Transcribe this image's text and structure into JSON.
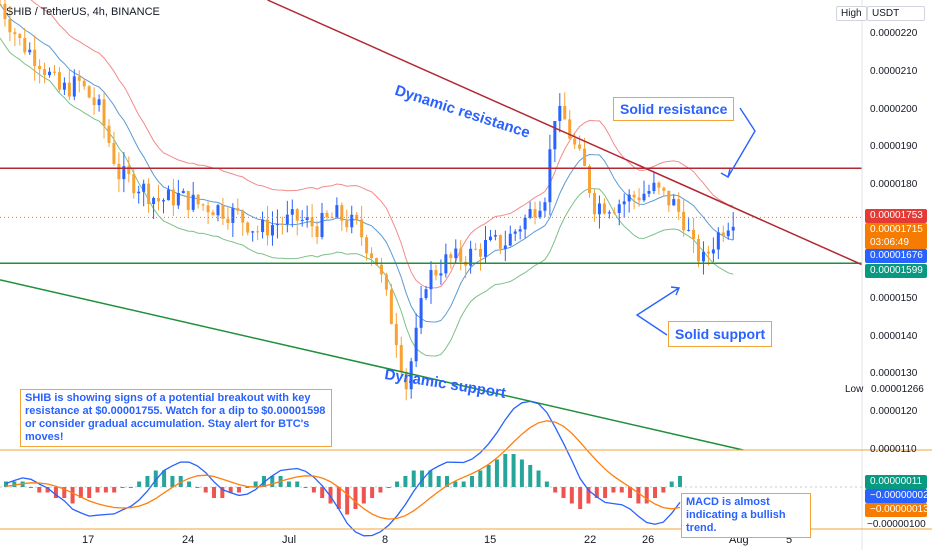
{
  "header": {
    "symbol": "SHIB / TetherUS, 4h, BINANCE"
  },
  "toolbar": {
    "high_label": "High",
    "currency": "USDT"
  },
  "price_axis": {
    "ticks": [
      "0.0000220",
      "0.0000210",
      "0.0000200",
      "0.0000190",
      "0.0000180",
      "0.0000150",
      "0.0000140",
      "0.0000130",
      "0.0000120",
      "0.0000110"
    ],
    "low_label": "Low",
    "low_value": "0.00001266"
  },
  "price_tags": {
    "resistance": "0.00001753",
    "last_price": "0.00001715",
    "countdown": "03:06:49",
    "ma": "0.00001676",
    "support": "0.00001599"
  },
  "macd_axis": {
    "macd_value": "0.00000011",
    "signal_neg": "−0.00000002",
    "hist_neg": "−0.00000013",
    "bottom": "−0.00000100"
  },
  "time_axis": {
    "ticks": [
      "17",
      "24",
      "Jul",
      "8",
      "15",
      "22",
      "26",
      "Aug",
      "5"
    ]
  },
  "annotations": {
    "dynamic_resistance": "Dynamic resistance",
    "dynamic_support": "Dynamic support",
    "solid_resistance": "Solid resistance",
    "solid_support": "Solid support",
    "summary": "SHIB is showing signs of a potential breakout with key resistance at $0.00001755. Watch for a dip to $0.00001598 or consider gradual accumulation. Stay alert for BTC's moves!",
    "macd_note": "MACD is almost indicating a bullish trend."
  },
  "colors": {
    "up": "#2962ff",
    "down": "#f7a233",
    "resistance": "#b22833",
    "support": "#1e8f3a",
    "bb": "#f28b8b",
    "ma": "#5b9bd5",
    "ma_green": "#7cc08a",
    "macd": "#2962ff",
    "signal": "#ff7f0e",
    "hist_up": "#26a69a",
    "hist_down": "#ef5350",
    "tag_blue": "#2962ff",
    "tag_orange": "#f57c00",
    "tag_red": "#e53935",
    "tag_green": "#089981"
  },
  "chart_data": {
    "type": "candlestick",
    "title": "SHIB / TetherUS, 4h, BINANCE",
    "y_unit": "USDT",
    "ylim": [
      1.1e-05,
      2.29e-05
    ],
    "x_ticks": [
      "17",
      "24",
      "Jul",
      "8",
      "15",
      "22",
      "26",
      "Aug",
      "5"
    ],
    "price_path": [
      [
        0,
        2.28e-05
      ],
      [
        4,
        2.18e-05
      ],
      [
        8,
        2.13e-05
      ],
      [
        12,
        2.05e-05
      ],
      [
        16,
        2.07e-05
      ],
      [
        20,
        2e-05
      ],
      [
        24,
        1.83e-05
      ],
      [
        28,
        1.8e-05
      ],
      [
        32,
        1.76e-05
      ],
      [
        36,
        1.77e-05
      ],
      [
        40,
        1.75e-05
      ],
      [
        44,
        1.74e-05
      ],
      [
        48,
        1.72e-05
      ],
      [
        52,
        1.68e-05
      ],
      [
        56,
        1.7e-05
      ],
      [
        60,
        1.71e-05
      ],
      [
        64,
        1.69e-05
      ],
      [
        68,
        1.72e-05
      ],
      [
        72,
        1.69e-05
      ],
      [
        76,
        1.6e-05
      ],
      [
        80,
        1.4e-05
      ],
      [
        82,
        1.27e-05
      ],
      [
        84,
        1.4e-05
      ],
      [
        86,
        1.55e-05
      ],
      [
        90,
        1.6e-05
      ],
      [
        94,
        1.61e-05
      ],
      [
        98,
        1.64e-05
      ],
      [
        102,
        1.65e-05
      ],
      [
        106,
        1.71e-05
      ],
      [
        110,
        1.78e-05
      ],
      [
        112,
        1.99e-05
      ],
      [
        114,
        1.97e-05
      ],
      [
        116,
        1.9e-05
      ],
      [
        118,
        1.84e-05
      ],
      [
        120,
        1.75e-05
      ],
      [
        124,
        1.75e-05
      ],
      [
        128,
        1.77e-05
      ],
      [
        132,
        1.79e-05
      ],
      [
        136,
        1.75e-05
      ],
      [
        138,
        1.71e-05
      ],
      [
        140,
        1.63e-05
      ],
      [
        142,
        1.6e-05
      ],
      [
        144,
        1.65e-05
      ],
      [
        146,
        1.69e-05
      ],
      [
        148,
        1.72e-05
      ]
    ],
    "levels": {
      "solid_resistance": 1.845e-05,
      "solid_support": 1.594e-05,
      "last_price": 1.715e-05
    },
    "trendlines": [
      {
        "name": "Dynamic resistance",
        "from": [
          54,
          2.29e-05
        ],
        "to": [
          174,
          1.59e-05
        ]
      },
      {
        "name": "Dynamic support",
        "from": [
          0,
          1.55e-05
        ],
        "to": [
          150,
          1.1e-05
        ]
      }
    ],
    "macd": {
      "hist": [
        1,
        1,
        1,
        0,
        -1,
        -1,
        -2,
        -2,
        -3,
        -2,
        -2,
        -1,
        -1,
        -1,
        0,
        0,
        1,
        2,
        3,
        3,
        2,
        2,
        1,
        0,
        -1,
        -2,
        -2,
        -1,
        -1,
        0,
        1,
        2,
        2,
        2,
        1,
        1,
        0,
        -1,
        -2,
        -3,
        -4,
        -5,
        -4,
        -3,
        -2,
        -1,
        0,
        1,
        2,
        3,
        3,
        3,
        2,
        2,
        1,
        1,
        2,
        3,
        4,
        5,
        6,
        6,
        5,
        4,
        3,
        1,
        -1,
        -2,
        -3,
        -4,
        -3,
        -2,
        -2,
        -1,
        -1,
        -2,
        -3,
        -3,
        -2,
        -1,
        1,
        2
      ],
      "range": [
        -1.0,
        1.0
      ]
    }
  }
}
